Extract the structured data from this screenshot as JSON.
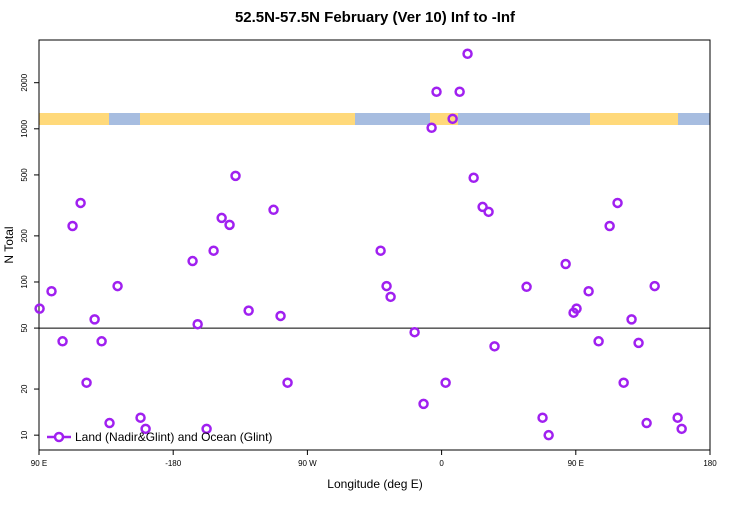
{
  "chart_data": {
    "type": "scatter",
    "title": "52.5N-57.5N February (Ver 10)   Inf to -Inf",
    "x_label": "Longitude (deg E)",
    "y_label": "N Total",
    "xlim": [
      -270,
      180
    ],
    "ylim": [
      8,
      3800
    ],
    "log_y": true,
    "legend": "bottom-left",
    "hline": 50,
    "xticks": [
      {
        "value": -270,
        "label": "90 E"
      },
      -180,
      {
        "value": -90,
        "label": "90 W"
      },
      0,
      {
        "value": 90,
        "label": "90 E"
      },
      180
    ],
    "yticks": [
      10,
      20,
      50,
      100,
      200,
      500,
      1000,
      2000
    ],
    "series": [
      {
        "name": "Land (Nadir&Glint) and Ocean (Glint)",
        "color": "#a020f0",
        "x": [
          -269.6,
          -261.6,
          -254.2,
          -247.5,
          -242.1,
          -238.1,
          -232.7,
          -228,
          -222.7,
          -217.3,
          -201.9,
          -198.5,
          -167,
          -163.6,
          -157.6,
          -152.9,
          -147.5,
          -142.2,
          -138.2,
          -129.4,
          -112.7,
          -108,
          -103.3,
          -40.9,
          -36.9,
          -34.2,
          -18.1,
          -12.1,
          -6.7,
          -3.4,
          2.7,
          7.4,
          12.1,
          17.4,
          21.5,
          27.5,
          31.5,
          35.5,
          57,
          67.7,
          71.8,
          83.2,
          88.5,
          90.5,
          98.6,
          105.3,
          112.7,
          118,
          122.1,
          127.4,
          132.1,
          137.5,
          142.9,
          158.3,
          161
        ],
        "values": [
          67,
          87,
          41,
          232,
          328,
          22,
          57,
          41,
          12,
          94,
          13,
          11,
          137,
          53,
          11,
          160,
          262,
          236,
          493,
          65,
          296,
          60,
          22,
          160,
          94,
          80,
          47,
          16,
          1016,
          1746,
          22,
          1162,
          1746,
          3090,
          479,
          309,
          287,
          38,
          93,
          13,
          10,
          131,
          63,
          67,
          87,
          41,
          232,
          328,
          22,
          57,
          40,
          12,
          94,
          13,
          11
        ]
      }
    ]
  }
}
